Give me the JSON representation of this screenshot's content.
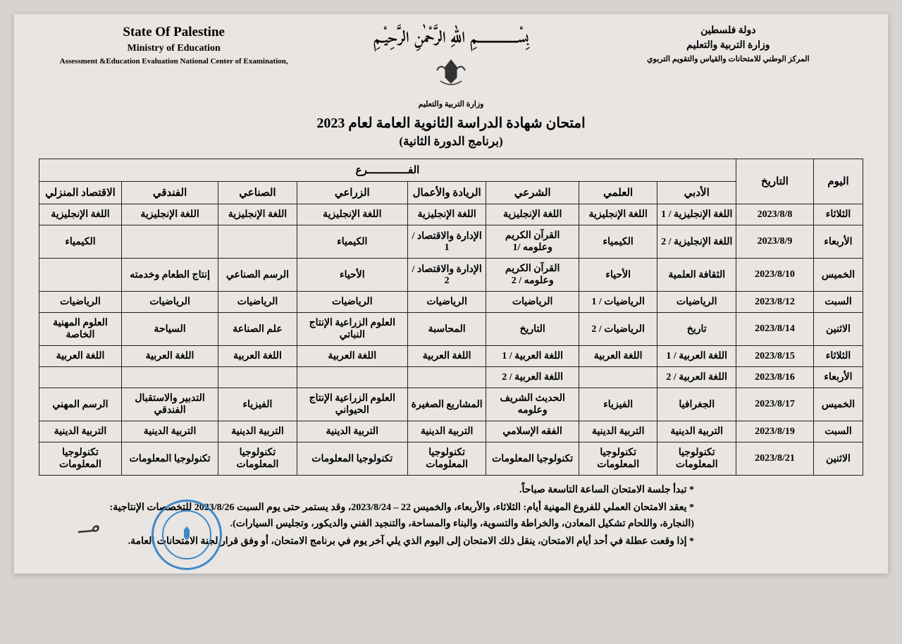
{
  "header": {
    "left": {
      "line1": "State Of Palestine",
      "line2": "Ministry of Education",
      "line3": "Assessment &Education Evaluation National Center of Examination,"
    },
    "center": {
      "bismillah": "بِسْــــــــــــــمِ اللّٰهِ الرَّحْمٰنِ الرَّحِيْـمِ",
      "caption": "وزارة التربية والتعليم"
    },
    "right": {
      "line1": "دولة فلسطين",
      "line2": "وزارة التربية والتعليم",
      "line3": "المركز الوطني للامتحانات والقياس والتقويم التربوي"
    }
  },
  "title": {
    "main": "امتحان شهادة الدراسة الثانوية العامة لعام 2023",
    "sub": "(برنامج الدورة الثانية)"
  },
  "table": {
    "columns": {
      "day": "اليوم",
      "date": "التاريخ",
      "branch_header": "الفـــــــــــــرع",
      "branches": [
        "الأدبي",
        "العلمي",
        "الشرعي",
        "الريادة والأعمال",
        "الزراعي",
        "الصناعي",
        "الفندقي",
        "الاقتصاد المنزلي"
      ]
    },
    "rows": [
      {
        "day": "الثلاثاء",
        "date": "2023/8/8",
        "cells": [
          "اللغة الإنجليزية / 1",
          "اللغة الإنجليزية",
          "اللغة الإنجليزية",
          "اللغة الإنجليزية",
          "اللغة الإنجليزية",
          "اللغة الإنجليزية",
          "اللغة الإنجليزية",
          "اللغة الإنجليزية"
        ]
      },
      {
        "day": "الأربعاء",
        "date": "2023/8/9",
        "cells": [
          "اللغة الإنجليزية / 2",
          "الكيمياء",
          "القرآن الكريم وعلومه /1",
          "الإدارة والاقتصاد / 1",
          "الكيمياء",
          "",
          "",
          "الكيمياء"
        ]
      },
      {
        "day": "الخميس",
        "date": "2023/8/10",
        "cells": [
          "الثقافة العلمية",
          "الأحياء",
          "القرآن الكريم وعلومه / 2",
          "الإدارة والاقتصاد / 2",
          "الأحياء",
          "الرسم الصناعي",
          "إنتاج الطعام وخدمته",
          ""
        ]
      },
      {
        "day": "السبت",
        "date": "2023/8/12",
        "cells": [
          "الرياضيات",
          "الرياضيات / 1",
          "الرياضيات",
          "الرياضيات",
          "الرياضيات",
          "الرياضيات",
          "الرياضيات",
          "الرياضيات"
        ]
      },
      {
        "day": "الاثنين",
        "date": "2023/8/14",
        "cells": [
          "تاريخ",
          "الرياضيات / 2",
          "التاريخ",
          "المحاسبة",
          "العلوم الزراعية الإنتاج النباتي",
          "علم الصناعة",
          "السياحة",
          "العلوم المهنية الخاصة"
        ]
      },
      {
        "day": "الثلاثاء",
        "date": "2023/8/15",
        "cells": [
          "اللغة العربية / 1",
          "اللغة العربية",
          "اللغة العربية / 1",
          "اللغة العربية",
          "اللغة العربية",
          "اللغة العربية",
          "اللغة العربية",
          "اللغة العربية"
        ]
      },
      {
        "day": "الأربعاء",
        "date": "2023/8/16",
        "cells": [
          "اللغة العربية / 2",
          "",
          "اللغة العربية / 2",
          "",
          "",
          "",
          "",
          ""
        ]
      },
      {
        "day": "الخميس",
        "date": "2023/8/17",
        "cells": [
          "الجغرافيا",
          "الفيزياء",
          "الحديث الشريف وعلومه",
          "المشاريع الصغيرة",
          "العلوم الزراعية الإنتاج الحيواني",
          "الفيزياء",
          "التدبير والاستقبال الفندقي",
          "الرسم المهني"
        ]
      },
      {
        "day": "السبت",
        "date": "2023/8/19",
        "cells": [
          "التربية الدينية",
          "التربية الدينية",
          "الفقه الإسلامي",
          "التربية الدينية",
          "التربية الدينية",
          "التربية الدينية",
          "التربية الدينية",
          "التربية الدينية"
        ]
      },
      {
        "day": "الاثنين",
        "date": "2023/8/21",
        "cells": [
          "تكنولوجيا المعلومات",
          "تكنولوجيا المعلومات",
          "تكنولوجيا المعلومات",
          "تكنولوجيا المعلومات",
          "تكنولوجيا المعلومات",
          "تكنولوجيا المعلومات",
          "تكنولوجيا المعلومات",
          "تكنولوجيا المعلومات"
        ]
      }
    ]
  },
  "notes": {
    "n1": "تبدأ جلسة الامتحان الساعة التاسعة صباحاً.",
    "n2": "يعقد الامتحان العملي للفروع المهنية أيام: الثلاثاء، والأربعاء، والخميس 22 – 2023/8/24، وقد يستمر حتى يوم السبت 2023/8/26 للتخصصات الإنتاجية:",
    "n2b": "(النجارة، واللحام تشكيل المعادن، والخراطة والتسوية، والبناء والمساحة، والتنجيد الفني والديكور، وتجليس السيارات).",
    "n3": "إذا وقعت عطلة في أحد أيام الامتحان، ينقل ذلك الامتحان إلى اليوم الذي يلي آخر يوم في برنامج الامتحان، أو وفق قرار لجنة الامتحانات العامة."
  }
}
